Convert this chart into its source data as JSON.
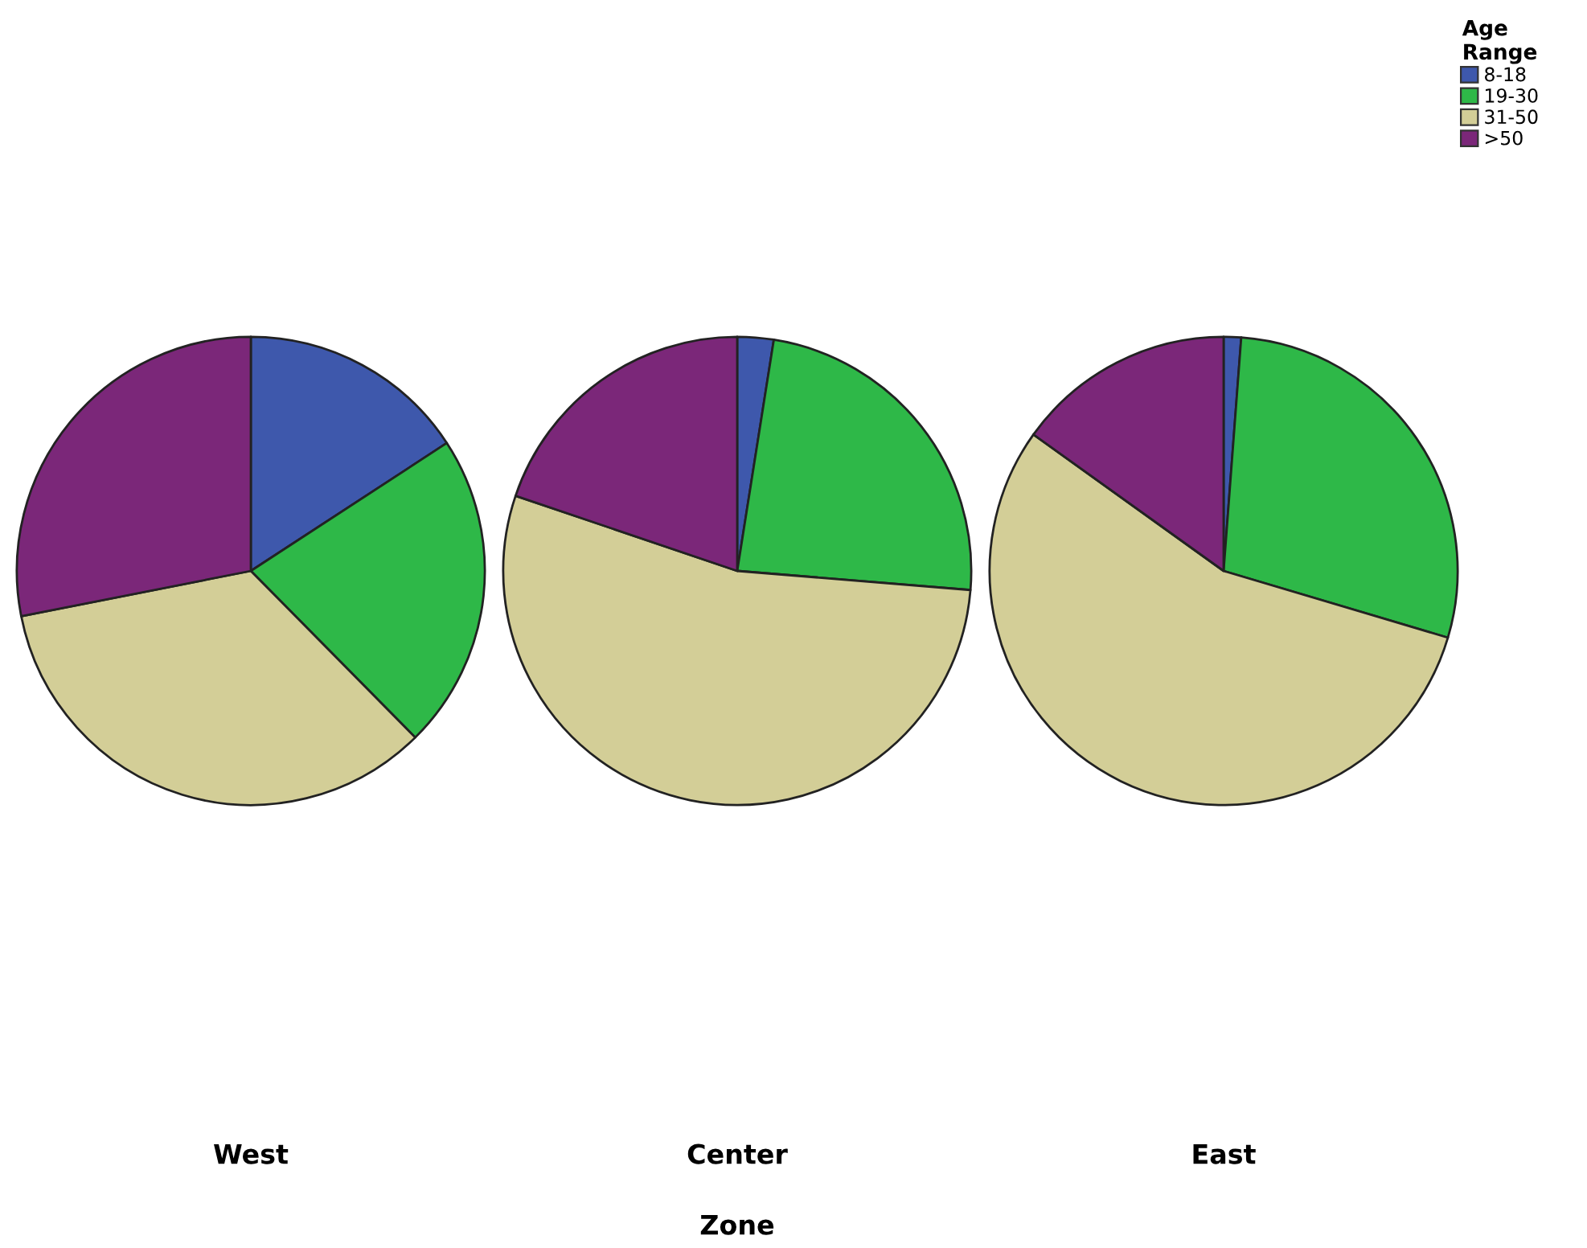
{
  "chart_data": [
    {
      "type": "pie",
      "xlabel": "West",
      "categories": [
        "8-18",
        "19-30",
        "31-50",
        ">50"
      ],
      "values": [
        15.8,
        21.8,
        34.3,
        28.1
      ],
      "colors": [
        "#3e58ac",
        "#2eb848",
        "#d3ce97",
        "#7b2779"
      ],
      "legend": "top right",
      "legend_title": "Age Range"
    },
    {
      "type": "pie",
      "xlabel": "Center",
      "categories": [
        null,
        null,
        null,
        null
      ],
      "values": [
        2.5,
        23.8,
        53.9,
        19.8
      ],
      "colors": [
        "#3e58ac",
        "#2eb848",
        "#d3ce97",
        "#7b2779"
      ],
      "annotations": [
        "Zone"
      ]
    },
    {
      "type": "pie",
      "xlabel": "East",
      "categories": [
        null,
        null,
        null,
        null
      ],
      "values": [
        1.2,
        28.4,
        55.3,
        15.1
      ],
      "colors": [
        "#3e58ac",
        "#2eb848",
        "#d3ce97",
        "#7b2779"
      ]
    }
  ]
}
